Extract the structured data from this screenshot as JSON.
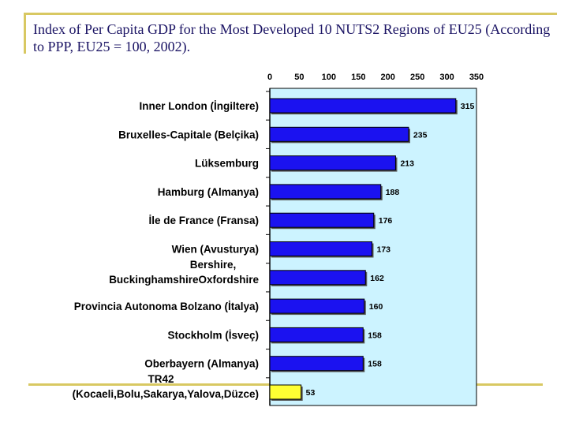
{
  "title": "Index of Per Capita GDP for the Most Developed 10 NUTS2 Regions of EU25 (According to PPP, EU25 = 100, 2002).",
  "chart_data": {
    "type": "bar",
    "orientation": "horizontal",
    "xlim": [
      0,
      350
    ],
    "ticks": [
      0,
      50,
      100,
      150,
      200,
      250,
      300,
      350
    ],
    "categories": [
      [
        "Inner London (İngiltere)"
      ],
      [
        "Bruxelles-Capitale (Belçika)"
      ],
      [
        "Lüksemburg"
      ],
      [
        "Hamburg (Almanya)"
      ],
      [
        "İle de France (Fransa)"
      ],
      [
        "Wien (Avusturya)"
      ],
      [
        "Bershire,",
        "BuckinghamshireOxfordshire"
      ],
      [
        "Provincia Autonoma Bolzano (İtalya)"
      ],
      [
        "Stockholm (İsveç)"
      ],
      [
        "Oberbayern (Almanya)"
      ],
      [
        "TR42",
        "(Kocaeli,Bolu,Sakarya,Yalova,Düzce)"
      ]
    ],
    "values": [
      315,
      235,
      213,
      188,
      176,
      173,
      162,
      160,
      158,
      158,
      53
    ],
    "value_labels": [
      "315",
      "235",
      "213",
      "188",
      "176",
      "173",
      "162",
      "160",
      "158",
      "158",
      "53"
    ],
    "highlight_index": 10,
    "colors": {
      "bar": "#1b12f0",
      "highlight": "#ffff33",
      "plot_bg": "#ccf3ff",
      "bar_edge": "#000000"
    }
  }
}
